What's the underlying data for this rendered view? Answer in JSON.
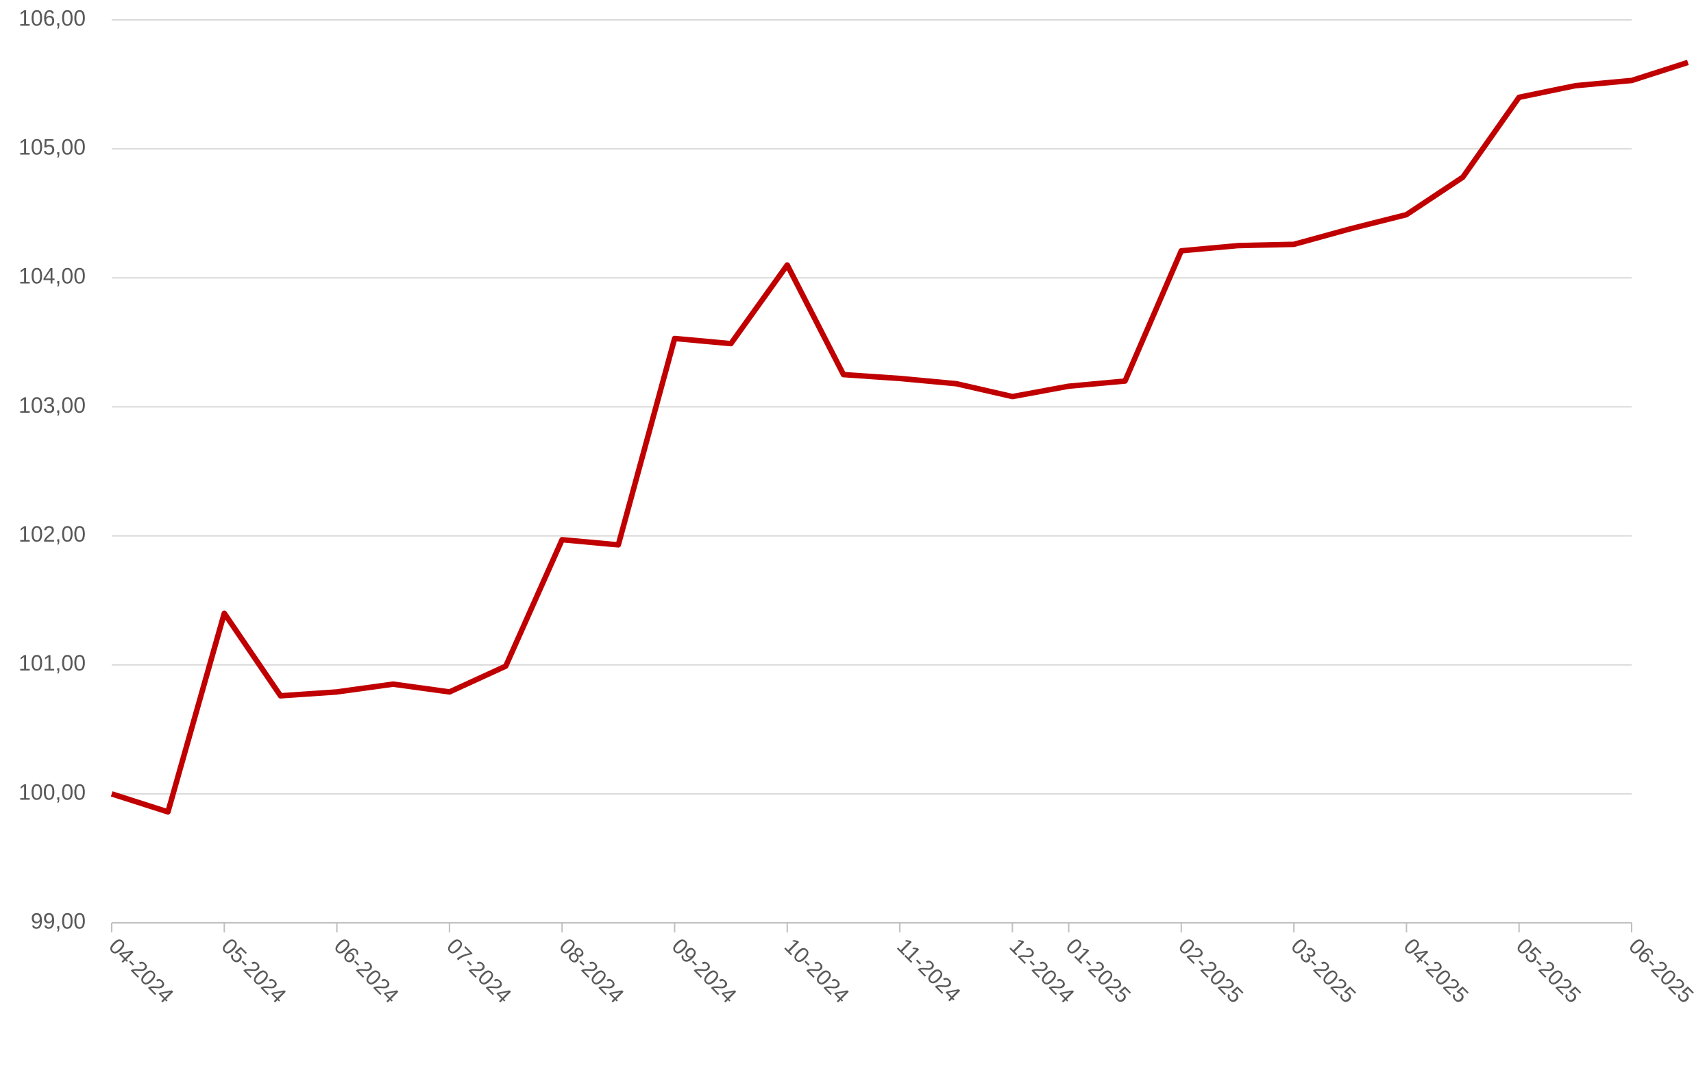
{
  "chart_data": {
    "type": "line",
    "categories": [
      "04-2024",
      null,
      "05-2024",
      null,
      "06-2024",
      null,
      "07-2024",
      null,
      "08-2024",
      null,
      "09-2024",
      null,
      "10-2024",
      null,
      "11-2024",
      null,
      "12-2024",
      "01-2025",
      null,
      "02-2025",
      null,
      "03-2025",
      null,
      "04-2025",
      null,
      "05-2025",
      null,
      "06-2025",
      null
    ],
    "series": [
      {
        "color": "#c00000",
        "values": [
          100.0,
          99.86,
          101.4,
          100.76,
          100.79,
          100.85,
          100.79,
          100.99,
          101.97,
          101.93,
          103.53,
          103.49,
          104.1,
          103.25,
          103.22,
          103.18,
          103.08,
          103.16,
          103.2,
          104.21,
          104.25,
          104.26,
          104.38,
          104.49,
          104.78,
          105.4,
          105.49,
          105.53,
          105.67
        ]
      }
    ],
    "ylim": [
      99,
      106
    ],
    "yticks": [
      {
        "value": 99,
        "label": "99,00"
      },
      {
        "value": 100,
        "label": "100,00"
      },
      {
        "value": 101,
        "label": "101,00"
      },
      {
        "value": 102,
        "label": "102,00"
      },
      {
        "value": 103,
        "label": "103,00"
      },
      {
        "value": 104,
        "label": "104,00"
      },
      {
        "value": 105,
        "label": "105,00"
      },
      {
        "value": 106,
        "label": "106,00"
      }
    ],
    "grid": true
  }
}
